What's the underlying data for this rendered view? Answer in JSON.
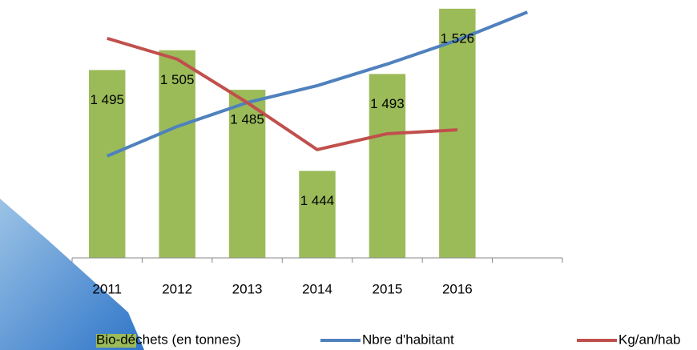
{
  "chart_data": {
    "type": "bar",
    "categories": [
      "2011",
      "2012",
      "2013",
      "2014",
      "2015",
      "2016",
      null
    ],
    "series": [
      {
        "name": "Bio-déchets (en tonnes)",
        "color": "#9bbb59",
        "values": [
          1495,
          1505,
          1485,
          1444,
          1493,
          1526,
          null
        ],
        "value_labels": [
          "1 495",
          "1 505",
          "1 485",
          "1 444",
          "1 493",
          "1 526",
          null
        ]
      },
      {
        "name": "Nbre d'habitant",
        "color": "#4f81bd",
        "type": "line",
        "axis": "y2",
        "values": [
          39.6,
          51.1,
          60.4,
          67,
          75.4,
          84.7,
          95.6
        ]
      },
      {
        "name": "Kg/an/hab",
        "color": "#c0504d",
        "type": "line",
        "axis": "y2",
        "values": [
          85.4,
          77.3,
          60.4,
          42.1,
          48.3,
          49.8,
          null
        ]
      }
    ],
    "ylim": [
      1400,
      1530
    ],
    "y2lim": [
      0,
      100
    ],
    "legend": "bottom"
  }
}
